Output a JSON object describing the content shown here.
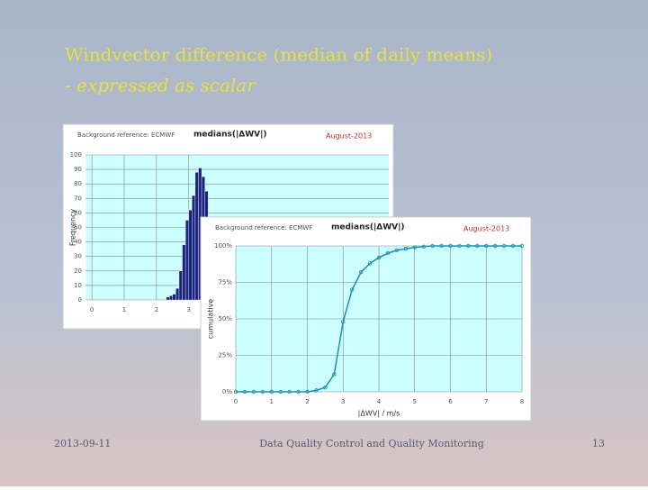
{
  "slide": {
    "title": "Windvector difference (median of daily means)",
    "subtitle": "- expressed as scalar",
    "footer": {
      "date": "2013-09-11",
      "center": "Data Quality Control and Quality Monitoring",
      "page": "13"
    }
  },
  "chart_data": [
    {
      "type": "histogram",
      "title": "medians(|ΔWV|)",
      "reference": "Background reference: ECMWF",
      "period": "August-2013",
      "ylabel": "Frequency",
      "bins": [
        2.3,
        2.4,
        2.5,
        2.6,
        2.7,
        2.8,
        2.9,
        3.0,
        3.1,
        3.2,
        3.3,
        3.4,
        3.5,
        3.6
      ],
      "counts": [
        2,
        3,
        4,
        8,
        20,
        38,
        55,
        62,
        72,
        88,
        91,
        85,
        75
      ],
      "color": "#1a237e",
      "xlim": [
        -0.2,
        9.2
      ],
      "xticks": [
        0,
        1,
        2,
        3
      ],
      "ylim": [
        0,
        100
      ],
      "yticks": [
        0,
        10,
        20,
        30,
        40,
        50,
        60,
        70,
        80,
        90,
        100
      ],
      "grid": true
    },
    {
      "type": "line",
      "title": "medians(|ΔWV|)",
      "reference": "Background reference: ECMWF",
      "period": "August-2013",
      "ylabel": "cumulative",
      "xlabel": "|ΔWV| / m/s",
      "x": [
        0,
        0.25,
        0.5,
        0.75,
        1,
        1.25,
        1.5,
        1.75,
        2,
        2.25,
        2.5,
        2.75,
        3,
        3.25,
        3.5,
        3.75,
        4,
        4.25,
        4.5,
        4.75,
        5,
        5.25,
        5.5,
        5.75,
        6,
        6.25,
        6.5,
        6.75,
        7,
        7.25,
        7.5,
        7.75,
        8
      ],
      "series": [
        {
          "name": "cumulative",
          "color": "#1f8fb0",
          "values": [
            0,
            0,
            0,
            0,
            0,
            0,
            0,
            0,
            0,
            1,
            3,
            12,
            48,
            70,
            82,
            88,
            92,
            95,
            97,
            98,
            99,
            99.5,
            100,
            100,
            100,
            100,
            100,
            100,
            100,
            100,
            100,
            100,
            100
          ]
        }
      ],
      "xlim": [
        0,
        8
      ],
      "xticks": [
        0,
        1,
        2,
        3,
        4,
        5,
        6,
        7,
        8
      ],
      "ylim": [
        0,
        100
      ],
      "yticks": [
        {
          "value": 0,
          "label": "0%"
        },
        {
          "value": 25,
          "label": "25%"
        },
        {
          "value": 50,
          "label": "50%"
        },
        {
          "value": 75,
          "label": "75%"
        },
        {
          "value": 100,
          "label": "100%"
        }
      ],
      "grid": true
    }
  ]
}
